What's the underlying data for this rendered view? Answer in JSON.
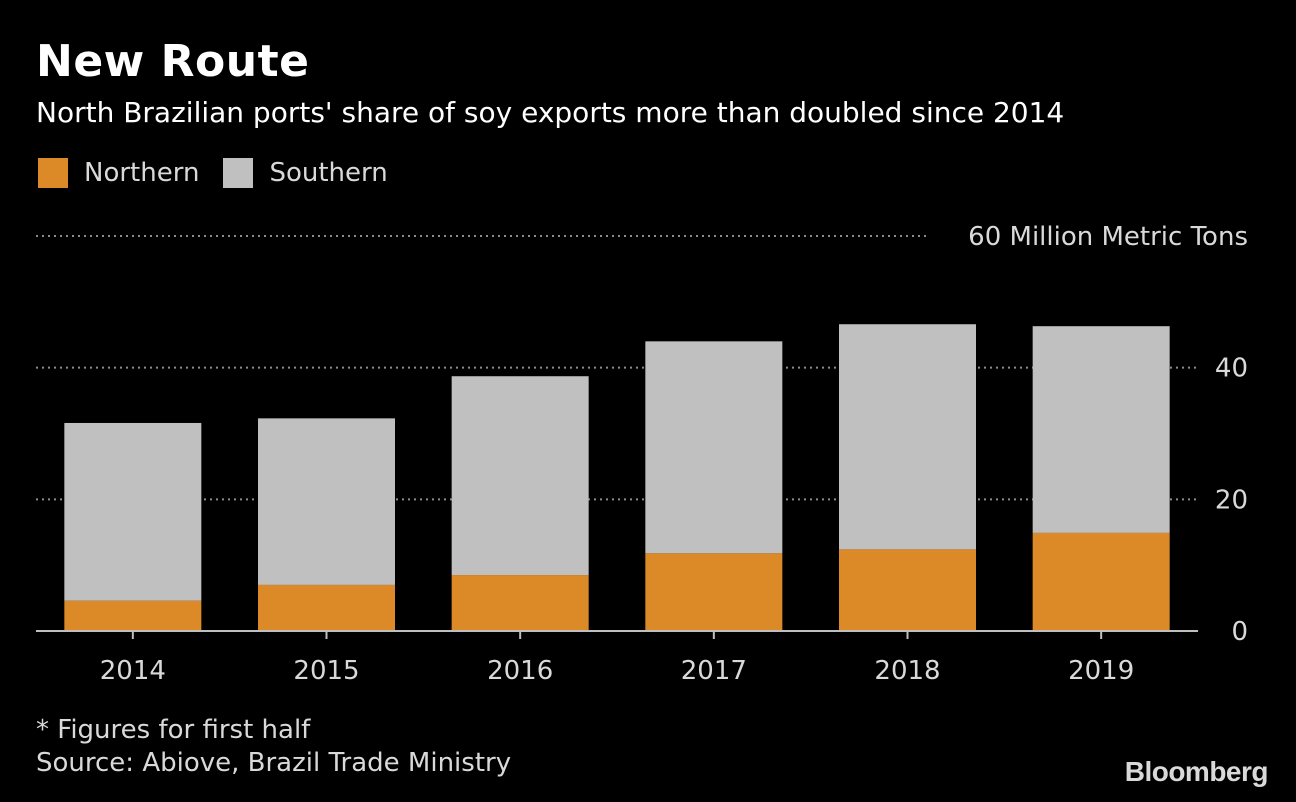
{
  "title": "New Route",
  "subtitle": "North Brazilian ports' share of soy exports more than doubled since 2014",
  "legend": {
    "northern": "Northern",
    "southern": "Southern"
  },
  "colors": {
    "northern": "#dc8a28",
    "southern": "#c0c0c0",
    "background": "#000000",
    "gridline": "#8c8c8c",
    "axis": "#bfbfbf"
  },
  "chart_data": {
    "type": "bar",
    "stacked": true,
    "categories": [
      "2014",
      "2015",
      "2016",
      "2017",
      "2018",
      "2019"
    ],
    "series": [
      {
        "name": "Northern",
        "values": [
          4.6,
          7.0,
          8.5,
          11.8,
          12.4,
          14.9
        ]
      },
      {
        "name": "Southern",
        "values": [
          27.0,
          25.3,
          30.2,
          32.2,
          34.2,
          31.4
        ]
      }
    ],
    "ylim": [
      0,
      60
    ],
    "yticks": [
      {
        "value": 0,
        "label": "0"
      },
      {
        "value": 20,
        "label": "20"
      },
      {
        "value": 40,
        "label": "40"
      },
      {
        "value": 60,
        "label": "60 Million Metric Tons"
      }
    ],
    "xlabel": "",
    "ylabel": "Million Metric Tons",
    "grid": true
  },
  "footnote": {
    "note": "* Figures for first half",
    "source": "Source: Abiove, Brazil Trade Ministry"
  },
  "brand": "Bloomberg"
}
